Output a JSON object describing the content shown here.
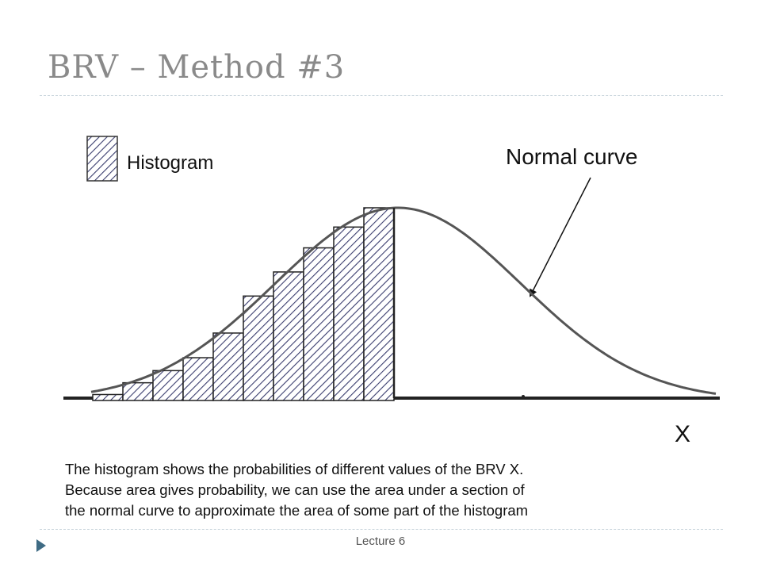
{
  "slide": {
    "title": "BRV – Method #3",
    "footer": "Lecture 6"
  },
  "diagram": {
    "legend_label": "Histogram",
    "curve_label": "Normal curve",
    "axis_label": "X",
    "histogram_fraction_heights": [
      0.031,
      0.092,
      0.155,
      0.222,
      0.35,
      0.542,
      0.667,
      0.792,
      0.9,
      1.0
    ],
    "colors": {
      "curve": "#555555",
      "hatch": "#3a3d6e",
      "axis": "#222222"
    }
  },
  "caption": {
    "lines": [
      "The histogram shows the probabilities of different values of the BRV X.",
      "Because area gives probability, we can use the area under a section of",
      "the normal curve to approximate the area of some part of the histogram"
    ]
  }
}
